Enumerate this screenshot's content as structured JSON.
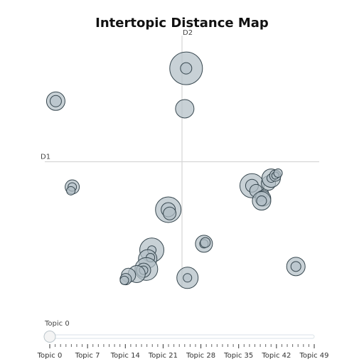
{
  "chart_data": {
    "type": "scatter",
    "title": "Intertopic Distance Map",
    "xlabel": "D1",
    "ylabel": "D2",
    "xlim": [
      -10,
      10
    ],
    "ylim": [
      -10,
      10
    ],
    "grid": false,
    "points": [
      {
        "x": 0.3,
        "y": 7.4,
        "r": 23,
        "ir": 8
      },
      {
        "x": 0.2,
        "y": 4.2,
        "r": 13
      },
      {
        "x": -9.2,
        "y": 4.8,
        "r": 13,
        "ir": 8
      },
      {
        "x": -8.0,
        "y": -2.0,
        "r": 10,
        "ir": 6
      },
      {
        "x": -8.1,
        "y": -2.3,
        "r": 6
      },
      {
        "x": -1.0,
        "y": -3.8,
        "r": 18,
        "ir": 10
      },
      {
        "x": -0.9,
        "y": -4.1,
        "r": 9
      },
      {
        "x": 5.1,
        "y": -1.9,
        "r": 17,
        "ir": 9
      },
      {
        "x": 5.4,
        "y": -2.3,
        "r": 9
      },
      {
        "x": 5.7,
        "y": -2.8,
        "r": 6
      },
      {
        "x": 6.0,
        "y": -2.5,
        "r": 6
      },
      {
        "x": 5.9,
        "y": -2.9,
        "r": 11
      },
      {
        "x": 5.8,
        "y": -3.1,
        "r": 13,
        "ir": 7
      },
      {
        "x": 6.3,
        "y": -1.7,
        "r": 10
      },
      {
        "x": 6.5,
        "y": -1.3,
        "r": 13,
        "ir": 6
      },
      {
        "x": 6.8,
        "y": -1.1,
        "r": 8,
        "ir": 5
      },
      {
        "x": 7.0,
        "y": -0.9,
        "r": 6
      },
      {
        "x": 1.6,
        "y": -6.5,
        "r": 12,
        "ir": 6
      },
      {
        "x": 1.7,
        "y": -6.4,
        "r": 7
      },
      {
        "x": -2.2,
        "y": -7.0,
        "r": 17,
        "ir": 6
      },
      {
        "x": -2.5,
        "y": -7.7,
        "r": 13
      },
      {
        "x": -2.3,
        "y": -7.6,
        "r": 6
      },
      {
        "x": -2.6,
        "y": -8.5,
        "r": 16
      },
      {
        "x": -2.8,
        "y": -8.6,
        "r": 10,
        "ir": 6
      },
      {
        "x": -3.3,
        "y": -8.9,
        "r": 12
      },
      {
        "x": -3.9,
        "y": -9.0,
        "r": 10
      },
      {
        "x": -4.1,
        "y": -9.3,
        "r": 8
      },
      {
        "x": -4.2,
        "y": -9.4,
        "r": 6
      },
      {
        "x": 0.4,
        "y": -9.2,
        "r": 15,
        "ir": 6
      },
      {
        "x": 8.3,
        "y": -8.3,
        "r": 13,
        "ir": 7
      }
    ]
  },
  "slider": {
    "current_label": "Topic 0",
    "value": 0,
    "min": 0,
    "max": 49,
    "tick_labels": [
      "Topic 0",
      "Topic 7",
      "Topic 14",
      "Topic 21",
      "Topic 28",
      "Topic 35",
      "Topic 42",
      "Topic 49"
    ],
    "tick_values": [
      0,
      7,
      14,
      21,
      28,
      35,
      42,
      49
    ]
  },
  "colors": {
    "bubble_fill": "#b0bec5",
    "bubble_stroke": "#37474f",
    "axis_line": "#d6d6d6",
    "slider_track": "#d9e2e8",
    "slider_handle": "#f4f4f4"
  }
}
